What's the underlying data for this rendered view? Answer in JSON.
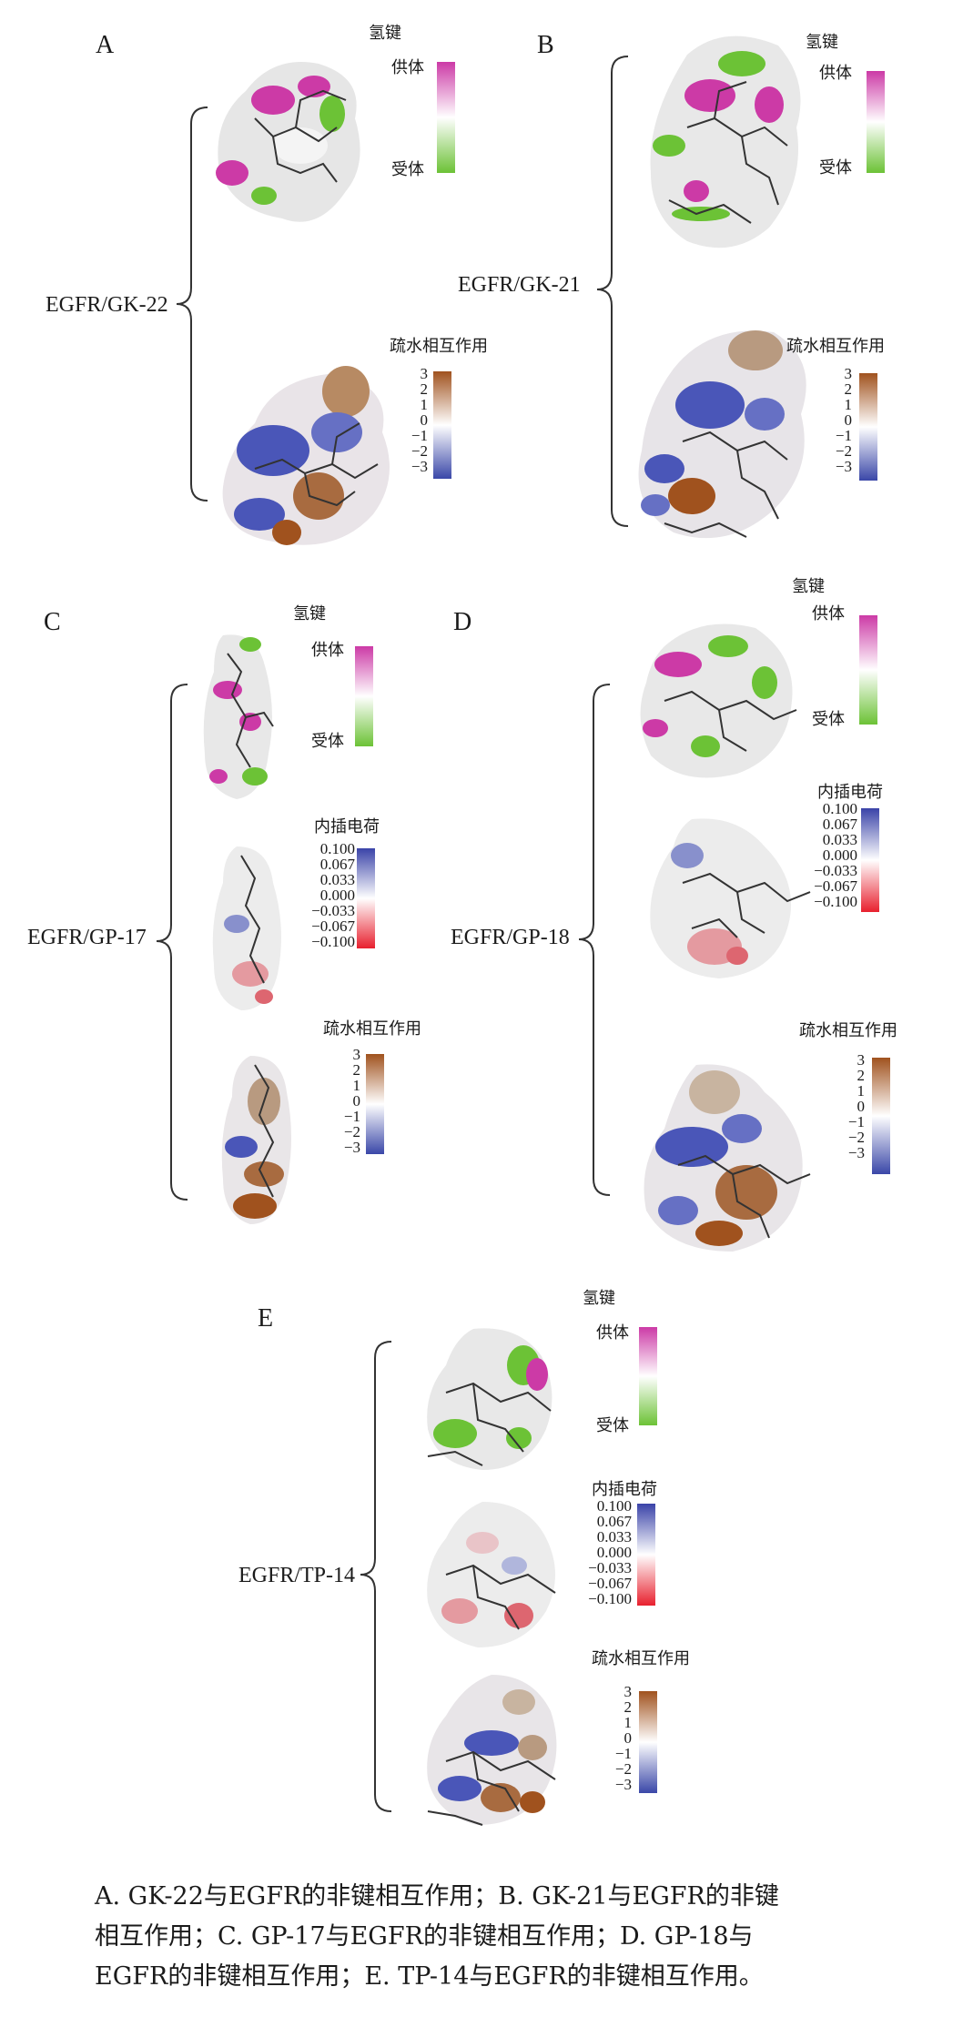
{
  "panels": [
    {
      "letter": "A",
      "complex": "EGFR/GK-22"
    },
    {
      "letter": "B",
      "complex": "EGFR/GK-21"
    },
    {
      "letter": "C",
      "complex": "EGFR/GP-17"
    },
    {
      "letter": "D",
      "complex": "EGFR/GP-18"
    },
    {
      "letter": "E",
      "complex": "EGFR/TP-14"
    }
  ],
  "legends": {
    "hbond": {
      "title": "氢键",
      "donor": "供体",
      "acceptor": "受体"
    },
    "charge": {
      "title": "内插电荷",
      "ticks": [
        "0.100",
        "0.067",
        "0.033",
        "0.000",
        "−0.033",
        "−0.067",
        "−0.100"
      ]
    },
    "hydrophobic": {
      "title": "疏水相互作用",
      "ticks": [
        "3",
        "2",
        "1",
        "0",
        "−1",
        "−2",
        "−3"
      ]
    }
  },
  "colors": {
    "donor": "#cc3aa6",
    "acceptor": "#6cc236",
    "charge_pos": "#3a43a8",
    "charge_neg": "#e8202e",
    "hydro_pos": "#a0521e",
    "hydro_neg": "#3a47a8"
  },
  "caption": [
    "A. GK-22与EGFR的非键相互作用；B. GK-21与EGFR的非键",
    "相互作用；C. GP-17与EGFR的非键相互作用；D. GP-18与",
    "EGFR的非键相互作用；E. TP-14与EGFR的非键相互作用。"
  ]
}
